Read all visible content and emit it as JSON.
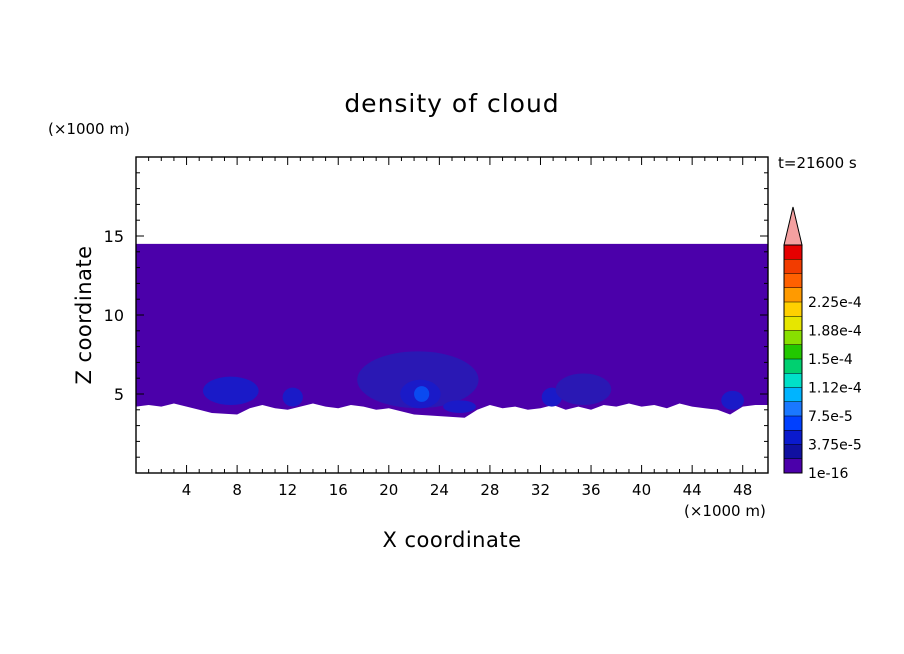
{
  "chart_data": {
    "type": "heatmap",
    "title": "density of cloud",
    "xlabel": "X coordinate",
    "ylabel": "Z coordinate",
    "x_unit_label": "(×1000 m)",
    "y_unit_label": "(×1000 m)",
    "time_label": "t=21600 s",
    "xlim": [
      0,
      50
    ],
    "ylim": [
      0,
      20
    ],
    "xticks": [
      4,
      8,
      12,
      16,
      20,
      24,
      28,
      32,
      36,
      40,
      44,
      48
    ],
    "yticks": [
      5,
      10,
      15
    ],
    "field": {
      "background_level": "1e-16",
      "layer_top_km": 14.5,
      "base_profile_km": [
        [
          0,
          4.2
        ],
        [
          1,
          4.3
        ],
        [
          2,
          4.2
        ],
        [
          3,
          4.4
        ],
        [
          4,
          4.2
        ],
        [
          5,
          4.0
        ],
        [
          6,
          3.8
        ],
        [
          8,
          3.7
        ],
        [
          9,
          4.1
        ],
        [
          10,
          4.3
        ],
        [
          11,
          4.1
        ],
        [
          12,
          4.0
        ],
        [
          13,
          4.2
        ],
        [
          14,
          4.4
        ],
        [
          15,
          4.2
        ],
        [
          16,
          4.1
        ],
        [
          17,
          4.3
        ],
        [
          18,
          4.2
        ],
        [
          19,
          4.0
        ],
        [
          20,
          4.1
        ],
        [
          22,
          3.7
        ],
        [
          24,
          3.6
        ],
        [
          26,
          3.5
        ],
        [
          27,
          4.0
        ],
        [
          28,
          4.3
        ],
        [
          29,
          4.1
        ],
        [
          30,
          4.2
        ],
        [
          31,
          4.0
        ],
        [
          32,
          4.1
        ],
        [
          33,
          4.3
        ],
        [
          34,
          4.0
        ],
        [
          35,
          4.2
        ],
        [
          36,
          4.0
        ],
        [
          37,
          4.3
        ],
        [
          38,
          4.2
        ],
        [
          39,
          4.4
        ],
        [
          40,
          4.2
        ],
        [
          41,
          4.3
        ],
        [
          42,
          4.1
        ],
        [
          43,
          4.4
        ],
        [
          44,
          4.2
        ],
        [
          45,
          4.1
        ],
        [
          46,
          4.0
        ],
        [
          47,
          3.7
        ],
        [
          48,
          4.2
        ],
        [
          49,
          4.3
        ],
        [
          50,
          4.3
        ]
      ],
      "cells": [
        {
          "x": 7.5,
          "z": 5.2,
          "rx": 2.2,
          "rz": 0.9,
          "level": "3.75e-5"
        },
        {
          "x": 12.4,
          "z": 4.8,
          "rx": 0.8,
          "rz": 0.6,
          "level": "3.75e-5"
        },
        {
          "x": 22.3,
          "z": 5.9,
          "rx": 4.8,
          "rz": 1.8,
          "level": "1.875e-5"
        },
        {
          "x": 22.5,
          "z": 5.0,
          "rx": 1.6,
          "rz": 0.9,
          "level": "3.75e-5"
        },
        {
          "x": 22.6,
          "z": 5.0,
          "rx": 0.6,
          "rz": 0.5,
          "level": "7.5e-5"
        },
        {
          "x": 25.6,
          "z": 4.2,
          "rx": 1.3,
          "rz": 0.4,
          "level": "3.75e-5"
        },
        {
          "x": 32.9,
          "z": 4.8,
          "rx": 0.8,
          "rz": 0.6,
          "level": "3.75e-5"
        },
        {
          "x": 35.4,
          "z": 5.3,
          "rx": 2.2,
          "rz": 1.0,
          "level": "1.875e-5"
        },
        {
          "x": 47.2,
          "z": 4.6,
          "rx": 0.9,
          "rz": 0.6,
          "level": "3.75e-5"
        }
      ]
    },
    "colorbar": {
      "labels": [
        "1e-16",
        "3.75e-5",
        "7.5e-5",
        "1.12e-4",
        "1.5e-4",
        "1.88e-4",
        "2.25e-4"
      ],
      "colors": [
        "#4b00aa",
        "#1010a0",
        "#0a1acd",
        "#0040ff",
        "#1a78ff",
        "#00b4ff",
        "#00e0c8",
        "#00d070",
        "#22c800",
        "#88e000",
        "#e6e600",
        "#ffd000",
        "#ff9a00",
        "#ff6000",
        "#f23c00",
        "#e60000"
      ],
      "overflow_color": "#f4a0a0",
      "level_colors": {
        "1e-16": "#4b00aa",
        "1.875e-5": "#2a18b4",
        "3.75e-5": "#1a1ac8",
        "7.5e-5": "#0a4af0"
      }
    }
  }
}
